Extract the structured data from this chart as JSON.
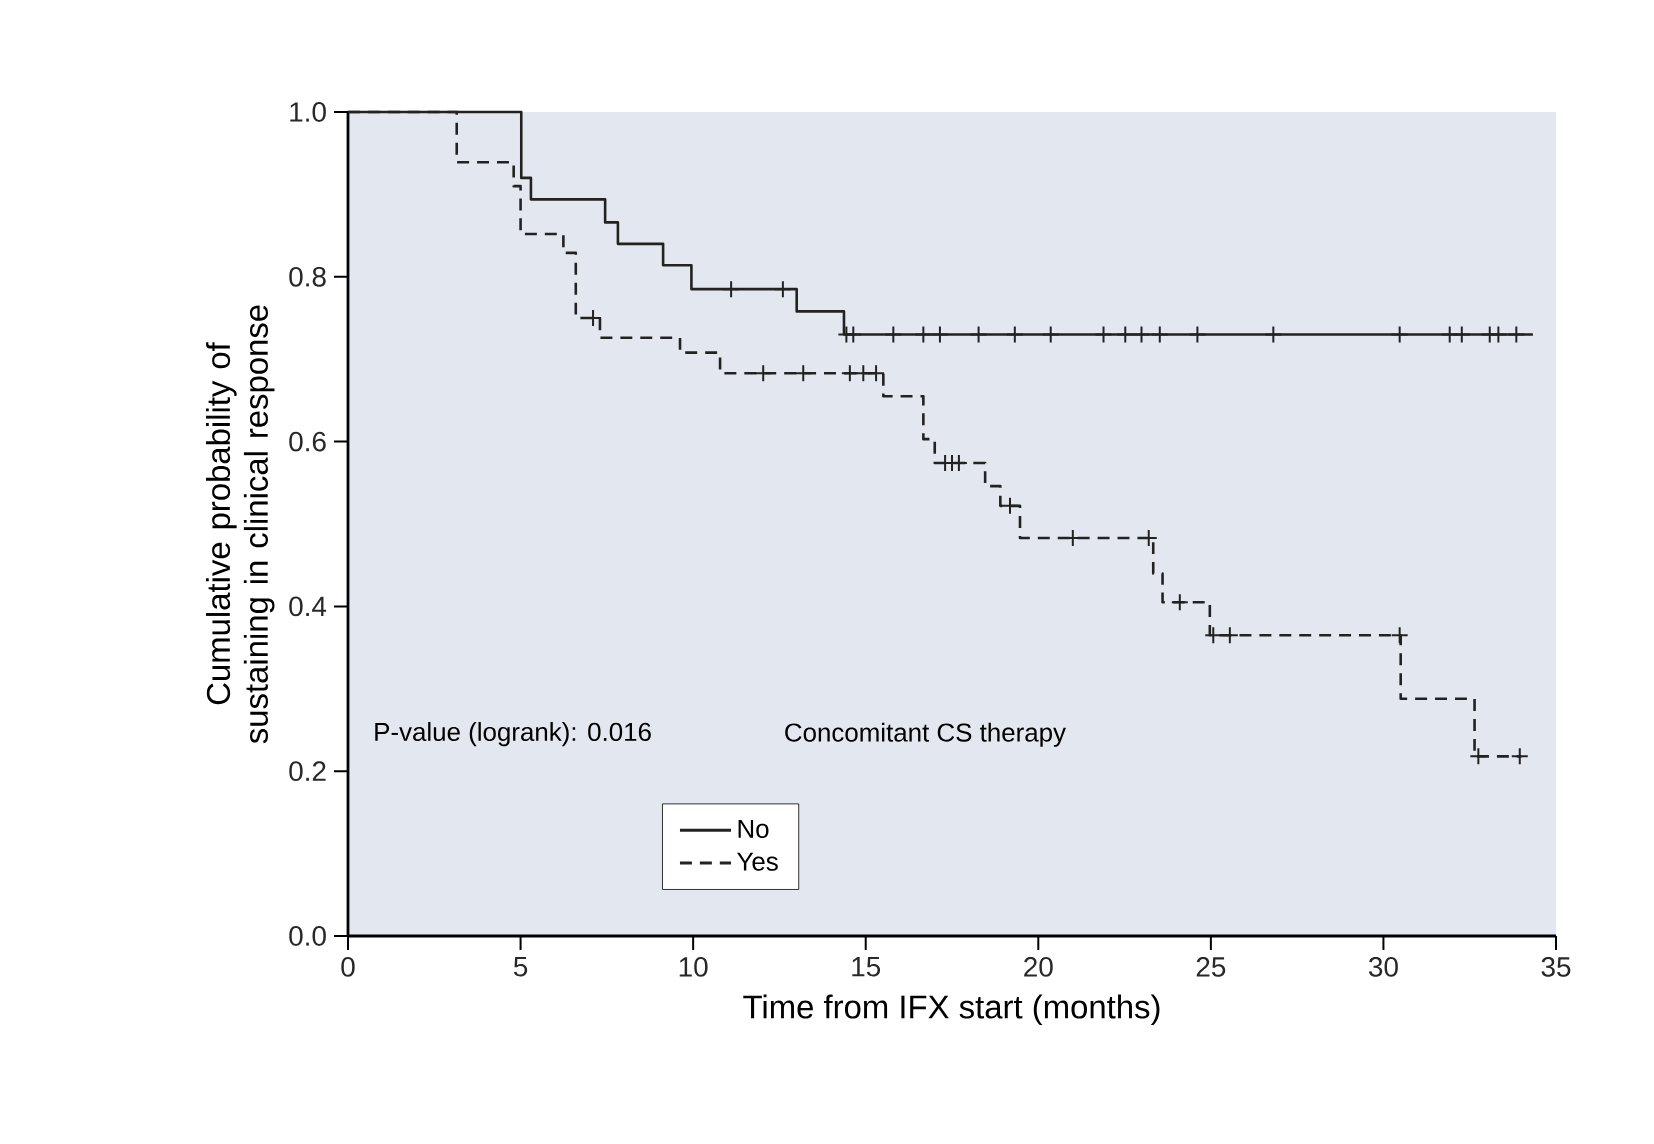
{
  "chart_data": {
    "type": "step",
    "xlabel": "Time from IFX start (months)",
    "ylabel": "Cumulative probability of sustaining in clinical response",
    "legend_title": "Concomitant CS therapy",
    "legend": "bottom left",
    "annotations": [
      "P-value (logrank): 0.016"
    ],
    "xlim": [
      0,
      35
    ],
    "xticks": [
      0,
      5,
      10,
      15,
      20,
      25,
      30,
      35
    ],
    "ylim": [
      0,
      1
    ],
    "yticks": [
      {
        "value": 0,
        "label": "0.0"
      },
      {
        "value": 0.2,
        "label": "0.2"
      },
      {
        "value": 0.4,
        "label": "0.4"
      },
      {
        "value": 0.6,
        "label": "0.6"
      },
      {
        "value": 0.8,
        "label": "0.8"
      },
      {
        "value": 1,
        "label": "1.0"
      }
    ],
    "grid": false,
    "series": [
      {
        "name": "No",
        "color": "#222222",
        "line_style": "solid",
        "x": [
          0,
          5.02,
          5.3,
          7.45,
          7.82,
          9.13,
          9.95,
          13.0,
          14.37,
          34.33
        ],
        "values": [
          1,
          0.92,
          0.894,
          0.866,
          0.84,
          0.814,
          0.785,
          0.758,
          0.73,
          0.73
        ]
      },
      {
        "name": "Yes",
        "color": "#222222",
        "line_style": "dashed",
        "x": [
          0,
          3.15,
          4.8,
          5.0,
          6.24,
          6.6,
          7.3,
          9.62,
          10.78,
          15.51,
          16.67,
          17.0,
          18.46,
          18.9,
          19.47,
          23.33,
          23.6,
          24.97,
          30.5,
          32.64,
          34.0
        ],
        "values": [
          1,
          0.939,
          0.91,
          0.852,
          0.829,
          0.75,
          0.726,
          0.708,
          0.683,
          0.655,
          0.603,
          0.574,
          0.546,
          0.522,
          0.483,
          0.44,
          0.405,
          0.365,
          0.288,
          0.218,
          0.218
        ]
      },
      {
        "type": "scatter",
        "marker": "cross",
        "color": "#222222",
        "x": [
          11.1,
          12.6,
          14.44,
          14.64,
          15.8,
          16.67,
          17.15,
          18.27,
          19.32,
          20.36,
          21.89,
          22.52,
          22.99,
          23.52,
          24.61,
          26.81,
          30.47,
          31.92,
          32.27,
          33.08,
          33.33,
          33.85
        ],
        "values": [
          0.785,
          0.785,
          0.73,
          0.73,
          0.73,
          0.73,
          0.73,
          0.73,
          0.73,
          0.73,
          0.73,
          0.73,
          0.73,
          0.73,
          0.73,
          0.73,
          0.73,
          0.73,
          0.73,
          0.73,
          0.73,
          0.73
        ]
      },
      {
        "type": "scatter",
        "marker": "cross",
        "color": "#222222",
        "x": [
          7.1,
          12.03,
          13.19,
          14.54,
          14.93,
          15.3,
          17.3,
          17.5,
          17.7,
          19.18,
          21.0,
          23.2,
          24.1,
          25.07,
          25.55,
          30.47,
          32.75,
          33.95
        ],
        "values": [
          0.75,
          0.683,
          0.683,
          0.683,
          0.683,
          0.683,
          0.574,
          0.574,
          0.574,
          0.522,
          0.483,
          0.483,
          0.405,
          0.365,
          0.365,
          0.365,
          0.218,
          0.218
        ]
      }
    ]
  }
}
